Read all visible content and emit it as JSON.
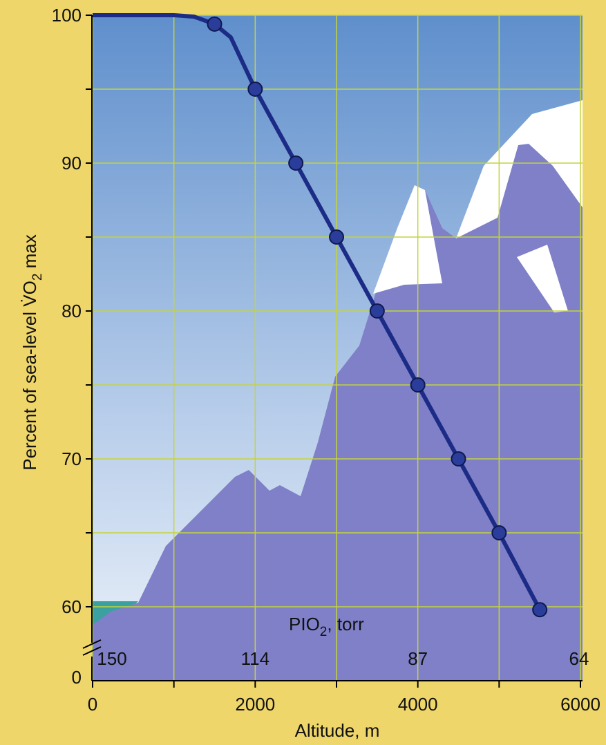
{
  "chart_data": {
    "type": "line",
    "y_label_parts": [
      "Percent of sea-level V̇O",
      "2",
      " max"
    ],
    "x_label": "Altitude, m",
    "xlim": [
      0,
      6000
    ],
    "xticks": [
      0,
      2000,
      4000,
      6000
    ],
    "minor_xticks": [
      1000,
      3000,
      5000
    ],
    "ylim": [
      55,
      100
    ],
    "yticks": [
      60,
      70,
      80,
      90,
      100
    ],
    "minor_yticks": [
      65,
      75,
      85,
      95
    ],
    "y_break_label": 0,
    "grid": true,
    "series": [
      {
        "color": "#1c2c86",
        "x": [
          0,
          1000,
          1250,
          1500,
          1700,
          2000,
          2500,
          3000,
          3500,
          4000,
          4500,
          5000,
          5500
        ],
        "values": [
          100,
          100,
          99.9,
          99.4,
          98.5,
          95,
          90,
          85,
          80,
          75,
          70,
          65,
          59.8
        ],
        "markers": false
      },
      {
        "color": "#1c2c86",
        "x": [
          1500,
          2000,
          2500,
          3000,
          3500,
          4000,
          4500,
          5000,
          5500
        ],
        "values": [
          99.4,
          95,
          90,
          85,
          80,
          75,
          70,
          65,
          59.8
        ],
        "markers": true
      }
    ],
    "pio2_title_parts": [
      "PIO",
      "2",
      ", torr"
    ],
    "pio2_ticks": [
      {
        "value": 0,
        "label": "150"
      },
      {
        "value": 2000,
        "label": "114"
      },
      {
        "value": 4000,
        "label": "87"
      },
      {
        "value": 6000,
        "label": "64"
      }
    ]
  }
}
